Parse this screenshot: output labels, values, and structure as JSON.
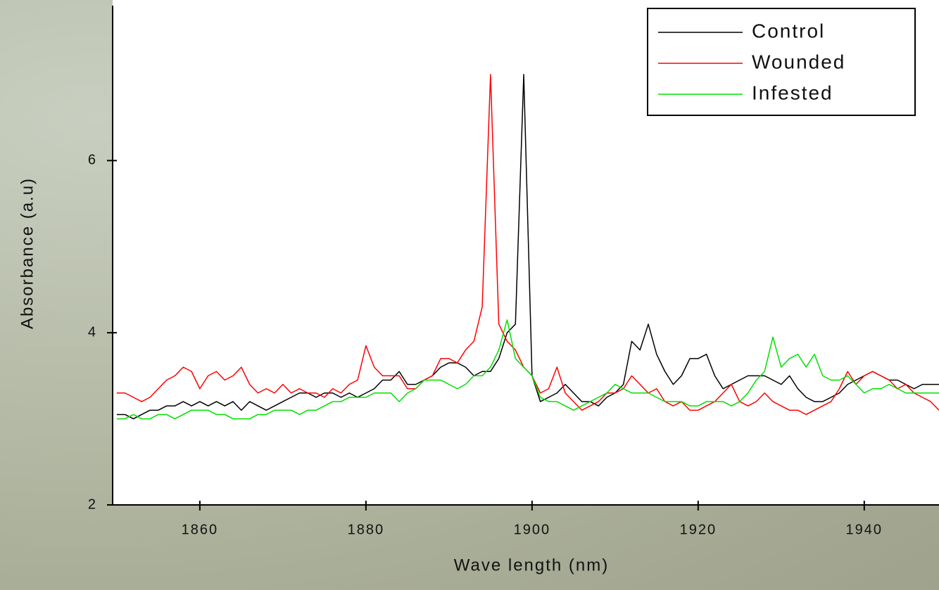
{
  "chart_data": {
    "type": "line",
    "xlabel": "Wave length (nm)",
    "ylabel": "Absorbance (a.u)",
    "legend": "upper right",
    "xlim": [
      1849.5,
      1949
    ],
    "ylim": [
      2,
      7.8
    ],
    "xticks": [
      1860,
      1880,
      1900,
      1920,
      1940
    ],
    "yticks": [
      2,
      4,
      6
    ],
    "x": [
      1850,
      1851,
      1852,
      1853,
      1854,
      1855,
      1856,
      1857,
      1858,
      1859,
      1860,
      1861,
      1862,
      1863,
      1864,
      1865,
      1866,
      1867,
      1868,
      1869,
      1870,
      1871,
      1872,
      1873,
      1874,
      1875,
      1876,
      1877,
      1878,
      1879,
      1880,
      1881,
      1882,
      1883,
      1884,
      1885,
      1886,
      1887,
      1888,
      1889,
      1890,
      1891,
      1892,
      1893,
      1894,
      1895,
      1896,
      1897,
      1898,
      1899,
      1900,
      1901,
      1902,
      1903,
      1904,
      1905,
      1906,
      1907,
      1908,
      1909,
      1910,
      1911,
      1912,
      1913,
      1914,
      1915,
      1916,
      1917,
      1918,
      1919,
      1920,
      1921,
      1922,
      1923,
      1924,
      1925,
      1926,
      1927,
      1928,
      1929,
      1930,
      1931,
      1932,
      1933,
      1934,
      1935,
      1936,
      1937,
      1938,
      1939,
      1940,
      1941,
      1942,
      1943,
      1944,
      1945,
      1946,
      1947,
      1948,
      1949
    ],
    "series": [
      {
        "name": "Control",
        "color": "#000000",
        "values": [
          3.05,
          3.05,
          3.0,
          3.05,
          3.1,
          3.1,
          3.15,
          3.15,
          3.2,
          3.15,
          3.2,
          3.15,
          3.2,
          3.15,
          3.2,
          3.1,
          3.2,
          3.15,
          3.1,
          3.15,
          3.2,
          3.25,
          3.3,
          3.3,
          3.25,
          3.3,
          3.3,
          3.25,
          3.3,
          3.25,
          3.3,
          3.35,
          3.45,
          3.45,
          3.55,
          3.4,
          3.4,
          3.45,
          3.5,
          3.6,
          3.65,
          3.65,
          3.6,
          3.5,
          3.55,
          3.55,
          3.7,
          4.0,
          4.1,
          7.0,
          3.5,
          3.2,
          3.25,
          3.3,
          3.4,
          3.3,
          3.2,
          3.2,
          3.15,
          3.25,
          3.3,
          3.4,
          3.9,
          3.8,
          4.1,
          3.75,
          3.55,
          3.4,
          3.5,
          3.7,
          3.7,
          3.75,
          3.5,
          3.35,
          3.4,
          3.45,
          3.5,
          3.5,
          3.5,
          3.45,
          3.4,
          3.5,
          3.35,
          3.25,
          3.2,
          3.2,
          3.25,
          3.3,
          3.4,
          3.45,
          3.5,
          3.55,
          3.5,
          3.45,
          3.45,
          3.4,
          3.35,
          3.4,
          3.4,
          3.4
        ]
      },
      {
        "name": "Wounded",
        "color": "#ff0000",
        "values": [
          3.3,
          3.3,
          3.25,
          3.2,
          3.25,
          3.35,
          3.45,
          3.5,
          3.6,
          3.55,
          3.35,
          3.5,
          3.55,
          3.45,
          3.5,
          3.6,
          3.4,
          3.3,
          3.35,
          3.3,
          3.4,
          3.3,
          3.35,
          3.3,
          3.3,
          3.25,
          3.35,
          3.3,
          3.4,
          3.45,
          3.85,
          3.6,
          3.5,
          3.5,
          3.5,
          3.35,
          3.35,
          3.45,
          3.5,
          3.7,
          3.7,
          3.65,
          3.8,
          3.9,
          4.3,
          7.0,
          4.1,
          3.9,
          3.8,
          3.6,
          3.5,
          3.3,
          3.35,
          3.6,
          3.3,
          3.2,
          3.1,
          3.15,
          3.2,
          3.3,
          3.3,
          3.35,
          3.5,
          3.4,
          3.3,
          3.35,
          3.2,
          3.15,
          3.2,
          3.1,
          3.1,
          3.15,
          3.2,
          3.3,
          3.4,
          3.2,
          3.15,
          3.2,
          3.3,
          3.2,
          3.15,
          3.1,
          3.1,
          3.05,
          3.1,
          3.15,
          3.2,
          3.35,
          3.55,
          3.4,
          3.5,
          3.55,
          3.5,
          3.45,
          3.35,
          3.4,
          3.3,
          3.25,
          3.2,
          3.1
        ]
      },
      {
        "name": "Infested",
        "color": "#00e000",
        "values": [
          3.0,
          3.0,
          3.05,
          3.0,
          3.0,
          3.05,
          3.05,
          3.0,
          3.05,
          3.1,
          3.1,
          3.1,
          3.05,
          3.05,
          3.0,
          3.0,
          3.0,
          3.05,
          3.05,
          3.1,
          3.1,
          3.1,
          3.05,
          3.1,
          3.1,
          3.15,
          3.2,
          3.2,
          3.25,
          3.25,
          3.25,
          3.3,
          3.3,
          3.3,
          3.2,
          3.3,
          3.35,
          3.45,
          3.45,
          3.45,
          3.4,
          3.35,
          3.4,
          3.5,
          3.5,
          3.6,
          3.8,
          4.15,
          3.7,
          3.6,
          3.5,
          3.25,
          3.2,
          3.2,
          3.15,
          3.1,
          3.15,
          3.2,
          3.25,
          3.3,
          3.4,
          3.35,
          3.3,
          3.3,
          3.3,
          3.25,
          3.2,
          3.2,
          3.2,
          3.15,
          3.15,
          3.2,
          3.2,
          3.2,
          3.15,
          3.2,
          3.3,
          3.45,
          3.55,
          3.95,
          3.6,
          3.7,
          3.75,
          3.6,
          3.75,
          3.5,
          3.45,
          3.45,
          3.5,
          3.4,
          3.3,
          3.35,
          3.35,
          3.4,
          3.35,
          3.3,
          3.3,
          3.3,
          3.3,
          3.3
        ]
      }
    ]
  }
}
